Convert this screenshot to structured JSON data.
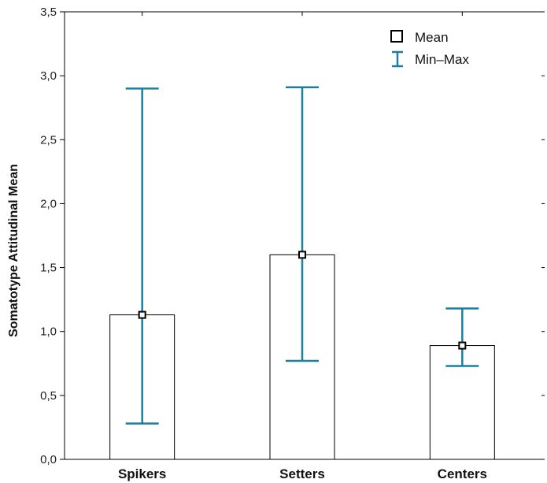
{
  "chart_data": {
    "type": "bar",
    "categories": [
      "Spikers",
      "Setters",
      "Centers"
    ],
    "series": [
      {
        "name": "Mean",
        "values": [
          1.13,
          1.6,
          0.89
        ]
      }
    ],
    "error_bars": {
      "name": "Min–Max",
      "min": [
        0.28,
        0.77,
        0.73
      ],
      "max": [
        2.9,
        2.91,
        1.18
      ]
    },
    "ylabel": "Somatotype Attitudinal Mean",
    "xlabel": "",
    "ylim": [
      0,
      3.5
    ],
    "yticks": [
      "0,0",
      "0,5",
      "1,0",
      "1,5",
      "2,0",
      "2,5",
      "3,0",
      "3,5"
    ],
    "legend": [
      "Mean",
      "Min–Max"
    ],
    "legend_position": "top-right",
    "grid": false,
    "colors": {
      "whisker": "#1a7fa0",
      "bar_fill": "#ffffff",
      "bar_stroke": "#000000"
    }
  }
}
